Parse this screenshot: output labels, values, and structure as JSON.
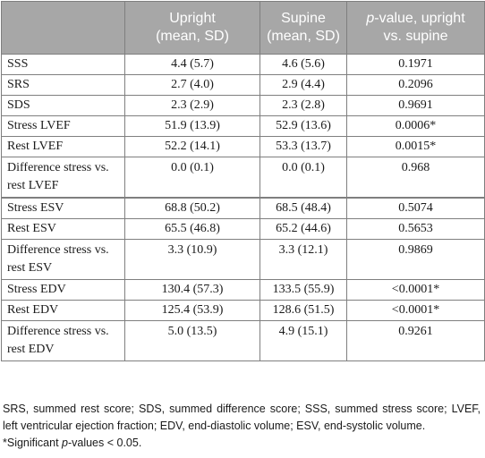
{
  "table": {
    "headers": {
      "col0": "",
      "col1_line1": "Upright",
      "col1_line2": "(mean, SD)",
      "col2_line1": "Supine",
      "col2_line2": "(mean, SD)",
      "col3_italic": "p",
      "col3_rest": "-value, upright",
      "col3_line2": "vs. supine"
    },
    "rows": [
      {
        "label": "SSS",
        "upright": "4.4 (5.7)",
        "supine": "4.6 (5.6)",
        "pvalue": "0.1971"
      },
      {
        "label": "SRS",
        "upright": "2.7 (4.0)",
        "supine": "2.9 (4.4)",
        "pvalue": "0.2096"
      },
      {
        "label": "SDS",
        "upright": "2.3 (2.9)",
        "supine": "2.3 (2.8)",
        "pvalue": "0.9691"
      },
      {
        "label": "Stress LVEF",
        "upright": "51.9 (13.9)",
        "supine": "52.9 (13.6)",
        "pvalue": "0.0006*"
      },
      {
        "label": "Rest LVEF",
        "upright": "52.2 (14.1)",
        "supine": "53.3 (13.7)",
        "pvalue": "0.0015*"
      },
      {
        "label": "Difference stress vs. rest LVEF",
        "upright": "0.0 (0.1)",
        "supine": "0.0 (0.1)",
        "pvalue": "0.968"
      },
      {
        "label": "Stress ESV",
        "upright": "68.8 (50.2)",
        "supine": "68.5 (48.4)",
        "pvalue": "0.5074"
      },
      {
        "label": "Rest ESV",
        "upright": "65.5 (46.8)",
        "supine": "65.2 (44.6)",
        "pvalue": "0.5653"
      },
      {
        "label": "Difference stress vs. rest ESV",
        "upright": "3.3 (10.9)",
        "supine": "3.3 (12.1)",
        "pvalue": "0.9869"
      },
      {
        "label": "Stress EDV",
        "upright": "130.4 (57.3)",
        "supine": "133.5 (55.9)",
        "pvalue": "<0.0001*"
      },
      {
        "label": "Rest EDV",
        "upright": "125.4 (53.9)",
        "supine": "128.6 (51.5)",
        "pvalue": "<0.0001*"
      },
      {
        "label": "Difference stress vs. rest EDV",
        "upright": "5.0 (13.5)",
        "supine": "4.9 (15.1)",
        "pvalue": "0.9261"
      }
    ]
  },
  "footnote": {
    "abbreviations": "SRS, summed rest score; SDS, summed difference score; SSS, summed stress score; LVEF, left ventricular ejection fraction; EDV, end-diastolic volume; ESV, end-systolic volume.",
    "sig_prefix": "*Significant ",
    "sig_italic": "p",
    "sig_suffix": "-values < 0.05."
  },
  "colors": {
    "header_bg": "#a7a7a7",
    "header_text": "#ffffff",
    "border": "#7f7f7f"
  }
}
